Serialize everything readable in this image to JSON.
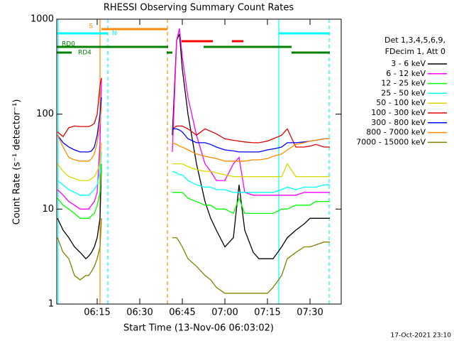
{
  "chart_data": {
    "type": "line",
    "title": "RHESSI Observing Summary Count Rates",
    "xlabel": "Start Time (13-Nov-06 06:03:02)",
    "ylabel": "Count Rate (s⁻¹ detector⁻¹)",
    "footer": "17-Oct-2021 23:10",
    "legend_header": [
      "Det 1,3,4,5,6,9,",
      "FDecim 1, Att 0"
    ],
    "log_y": true,
    "xlim": [
      0.75,
      101
    ],
    "xticks": [
      {
        "value": 15,
        "label": "06:15"
      },
      {
        "value": 30,
        "label": "06:30"
      },
      {
        "value": 45,
        "label": "06:45"
      },
      {
        "value": 60,
        "label": "07:00"
      },
      {
        "value": 75,
        "label": "07:15"
      },
      {
        "value": 90,
        "label": "07:30"
      }
    ],
    "ylim": [
      1,
      1000
    ],
    "yticks": [
      1,
      10,
      100,
      1000
    ],
    "x": [
      1,
      3,
      5,
      7,
      9,
      11,
      12,
      13,
      14,
      15,
      16,
      16.5,
      30,
      41.5,
      43,
      44,
      45,
      47,
      50,
      53,
      55,
      57,
      60,
      63,
      65,
      67,
      70,
      72,
      75,
      77,
      80,
      82,
      85,
      88,
      90,
      92,
      95,
      97
    ],
    "series": [
      {
        "name": "3 - 6 keV",
        "color": "#000000",
        "values": [
          8,
          6,
          5,
          4,
          3.5,
          3,
          3.2,
          3.5,
          4,
          5,
          8,
          30,
          null,
          60,
          600,
          700,
          300,
          100,
          30,
          12,
          8,
          6,
          4,
          5,
          18,
          6,
          3.5,
          3,
          3,
          3,
          4,
          5,
          6,
          7,
          8,
          8,
          8,
          8
        ]
      },
      {
        "name": "6 - 12 keV",
        "color": "#ff00ff",
        "values": [
          16,
          14,
          12,
          11,
          10,
          10,
          10,
          11,
          12,
          15,
          50,
          240,
          null,
          40,
          600,
          800,
          400,
          150,
          60,
          30,
          25,
          20,
          20,
          30,
          35,
          15,
          14,
          14,
          14,
          14,
          14,
          14,
          14,
          15,
          15,
          15,
          15,
          15
        ]
      },
      {
        "name": "12 - 25 keV",
        "color": "#00ff00",
        "values": [
          13,
          11,
          10,
          9,
          8,
          8,
          8,
          8.5,
          9,
          11,
          15,
          30,
          null,
          15,
          15,
          15,
          15,
          13,
          12,
          11,
          11,
          10,
          10,
          9,
          13,
          9,
          9,
          9,
          9,
          9,
          10,
          10,
          11,
          11,
          11,
          12,
          12,
          12
        ]
      },
      {
        "name": "25 - 50 keV",
        "color": "#00ffff",
        "values": [
          20,
          18,
          16,
          15,
          14,
          14,
          14,
          15,
          16,
          18,
          25,
          40,
          null,
          25,
          24,
          23,
          23,
          20,
          18,
          17,
          17,
          16,
          16,
          15,
          15,
          15,
          15,
          15,
          15,
          15,
          16,
          17,
          16,
          17,
          17,
          17,
          18,
          18
        ]
      },
      {
        "name": "50 - 100 keV",
        "color": "#d8d800",
        "values": [
          30,
          25,
          22,
          21,
          20,
          20,
          20,
          21,
          22,
          25,
          30,
          50,
          null,
          30,
          30,
          30,
          30,
          28,
          26,
          25,
          25,
          24,
          23,
          22,
          22,
          22,
          22,
          22,
          22,
          22,
          22,
          30,
          22,
          22,
          22,
          22,
          22,
          22
        ]
      },
      {
        "name": "100 - 300 keV",
        "color": "#e00000",
        "values": [
          65,
          58,
          72,
          75,
          74,
          74,
          74,
          76,
          80,
          100,
          200,
          240,
          null,
          70,
          75,
          75,
          75,
          70,
          60,
          70,
          66,
          62,
          55,
          53,
          52,
          51,
          50,
          50,
          52,
          55,
          60,
          70,
          45,
          45,
          46,
          48,
          45,
          45
        ]
      },
      {
        "name": "300 - 800 keV",
        "color": "#0000ff",
        "values": [
          60,
          50,
          45,
          42,
          40,
          40,
          40,
          41,
          45,
          60,
          100,
          150,
          null,
          70,
          70,
          68,
          65,
          55,
          50,
          50,
          48,
          45,
          42,
          41,
          40,
          40,
          40,
          40,
          42,
          43,
          45,
          50,
          50,
          51,
          52,
          53,
          55,
          55
        ]
      },
      {
        "name": "800 - 7000 keV",
        "color": "#ff8c00",
        "values": [
          60,
          45,
          35,
          33,
          32,
          32,
          32,
          34,
          38,
          50,
          80,
          120,
          null,
          50,
          48,
          46,
          45,
          42,
          38,
          36,
          35,
          34,
          32,
          32,
          32,
          32,
          33,
          33,
          34,
          36,
          38,
          42,
          48,
          50,
          52,
          53,
          55,
          55
        ]
      },
      {
        "name": "7000 - 15000 keV",
        "color": "#808000",
        "values": [
          5,
          3.5,
          3,
          2,
          1.8,
          2,
          2,
          2.2,
          2.5,
          3,
          4,
          8,
          null,
          5,
          5,
          4.5,
          4,
          3,
          2.5,
          2,
          1.8,
          1.5,
          1.3,
          1.3,
          1.3,
          1.3,
          1.3,
          1.3,
          1.3,
          1.5,
          2,
          3,
          3.5,
          4,
          4,
          4.2,
          4.5,
          4.5
        ]
      }
    ],
    "flags": [
      {
        "label": "S",
        "color": "#ff8c00",
        "spans": [
          [
            16.5,
            39.75
          ]
        ]
      },
      {
        "label": "N",
        "color": "#00ffff",
        "spans": [
          [
            0.75,
            18.75
          ],
          [
            79,
            97
          ]
        ]
      },
      {
        "label": "RD0",
        "color": "#008000",
        "spans": [
          [
            0.75,
            40
          ],
          [
            52.5,
            83.5
          ]
        ]
      },
      {
        "label": "RD4",
        "color": "#008000",
        "spans": [
          [
            0.75,
            6
          ],
          [
            39.5,
            41.5
          ],
          [
            83.5,
            97
          ]
        ]
      },
      {
        "color": "#ff0000",
        "spans": [
          [
            44.75,
            55.75
          ],
          [
            62.5,
            66.5
          ]
        ]
      }
    ],
    "vlines": [
      {
        "x": 1.25,
        "color": "#00ffff",
        "dashed": false
      },
      {
        "x": 18.75,
        "color": "#00ffff",
        "dashed": true
      },
      {
        "x": 79,
        "color": "#00ffff",
        "dashed": false
      },
      {
        "x": 96.75,
        "color": "#00ffff",
        "dashed": true
      },
      {
        "x": 16,
        "color": "#ff8c00",
        "dashed": false
      },
      {
        "x": 39.75,
        "color": "#ff8c00",
        "dashed": true
      }
    ]
  }
}
